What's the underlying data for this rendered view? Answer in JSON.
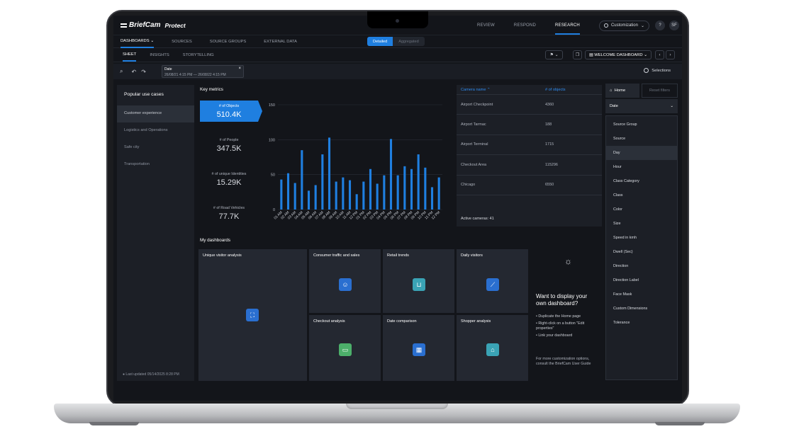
{
  "app": {
    "brand": "BriefCam",
    "product": "Protect",
    "top_nav": [
      "REVIEW",
      "RESPOND",
      "RESEARCH"
    ],
    "active_nav": "RESEARCH",
    "customization_label": "Customization",
    "help": "?",
    "user_initials": "SF"
  },
  "secondary_nav": {
    "items": [
      "DASHBOARDS",
      "SOURCES",
      "SOURCE GROUPS",
      "EXTERNAL DATA"
    ],
    "view_toggle": [
      "Detailed",
      "Aggregated"
    ]
  },
  "sheet_tabs": [
    "SHEET",
    "INSIGHTS",
    "STORYTELLING"
  ],
  "dashboard_select": "WELCOME DASHBOARD",
  "filter": {
    "label": "Date",
    "range": "26/08/21    4:15 PM — 26/08/22    4:15 PM",
    "selections": "Selections"
  },
  "use_cases": {
    "title": "Popular use cases",
    "items": [
      "Customer experience",
      "Logistics and Operations",
      "Safe city",
      "Transportation"
    ],
    "last_updated": "Last updated 05/14/2025 8:28 PM"
  },
  "key_metrics": {
    "title": "Key metrics",
    "metrics": [
      {
        "label": "# of Objects",
        "value": "510.4K"
      },
      {
        "label": "# of People",
        "value": "347.5K"
      },
      {
        "label": "# of unique Identities",
        "value": "15.29K"
      },
      {
        "label": "# of Road Vehicles",
        "value": "77.7K"
      }
    ]
  },
  "chart_data": {
    "type": "bar",
    "title": "",
    "xlabel": "",
    "ylabel": "",
    "ylim": [
      0,
      150
    ],
    "yticks": [
      0,
      50,
      100,
      150
    ],
    "categories": [
      "01 AM",
      "02 AM",
      "03 AM",
      "04 AM",
      "05 AM",
      "06 AM",
      "07 AM",
      "08 AM",
      "09 AM",
      "10 AM",
      "11 AM",
      "12 PM",
      "01 PM",
      "02 PM",
      "03 PM",
      "04 PM",
      "05 PM",
      "06 PM",
      "07 PM",
      "08 PM",
      "09 PM",
      "10 PM",
      "11 PM",
      "12 PM"
    ],
    "values": [
      43,
      52,
      38,
      85,
      27,
      35,
      79,
      103,
      40,
      46,
      42,
      22,
      40,
      58,
      37,
      49,
      101,
      49,
      62,
      58,
      79,
      60,
      32,
      46
    ],
    "bar_color": "#1f7fe0",
    "grid": true
  },
  "cameras": {
    "headers": [
      "Camera name",
      "# of objects"
    ],
    "rows": [
      [
        "Airport Checkpoint",
        "4360"
      ],
      [
        "Airport Tarmac",
        "188"
      ],
      [
        "Airport Terminal",
        "1715"
      ],
      [
        "Checkout Area",
        "115296"
      ],
      [
        "Chicago",
        "6550"
      ]
    ],
    "active_cameras": "Active cameras: 41"
  },
  "side_filters": {
    "home": "Home",
    "reset": "Reset filters",
    "date_field": "Date",
    "fields": [
      "Source Group",
      "Source",
      "Day",
      "Hour",
      "Class Category",
      "Class",
      "Color",
      "Size",
      "Speed in kmh",
      "Dwell (Sec)",
      "Direction",
      "Direction Label",
      "Face Mask",
      "Custom Dimensions",
      "Tolerance"
    ]
  },
  "my_dashboards": {
    "title": "My dashboards",
    "tiles": [
      {
        "title": "Unique visitor analysis",
        "icon": "face-scan-icon",
        "color": "#2a6fd0"
      },
      {
        "title": "Consumer traffic and sales",
        "icon": "people-group-icon",
        "color": "#2a6fd0"
      },
      {
        "title": "Retail trends",
        "icon": "cart-icon",
        "color": "#3aa3b5"
      },
      {
        "title": "Daily visitors",
        "icon": "trend-chart-icon",
        "color": "#2a6fd0"
      },
      {
        "title": "Checkout analysis",
        "icon": "credit-card-icon",
        "color": "#4caf6a"
      },
      {
        "title": "Date comparison",
        "icon": "calendar-icon",
        "color": "#2a6fd0"
      },
      {
        "title": "Shopper analysis",
        "icon": "shopping-bag-icon",
        "color": "#3aa3b5"
      }
    ]
  },
  "promo": {
    "heading": "Want to display your own dashboard?",
    "steps": [
      "Duplicate the Home page",
      "Right-click on a button \"Edit properties\"",
      "Link your dashboard"
    ],
    "more": "For more customization options, consult the BriefCam User Guide"
  }
}
